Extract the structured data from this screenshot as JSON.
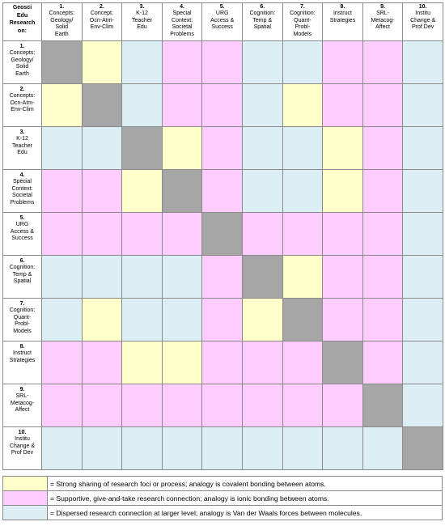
{
  "corner": [
    "Geosci",
    "Edu",
    "Research",
    "on:"
  ],
  "topics": [
    {
      "num": "1.",
      "label": [
        "Concepts:",
        "Geology/",
        "Solid",
        "Earth"
      ]
    },
    {
      "num": "2.",
      "label": [
        "Concept:",
        "Ocn-Atm-",
        "Env-Clim"
      ]
    },
    {
      "num": "3.",
      "label": [
        "K-12",
        "Teacher",
        "Edu"
      ]
    },
    {
      "num": "4.",
      "label": [
        "Special",
        "Context:",
        "Societal",
        "Problems"
      ]
    },
    {
      "num": "5.",
      "label": [
        "URG",
        "Access &",
        "Success"
      ]
    },
    {
      "num": "6.",
      "label": [
        "Cognition:",
        "Temp &",
        "Spatial"
      ]
    },
    {
      "num": "7.",
      "label": [
        "Cognition:",
        "Quant-",
        "Probl-",
        "Models"
      ]
    },
    {
      "num": "8.",
      "label": [
        "Instruct",
        "Strategies"
      ]
    },
    {
      "num": "9.",
      "label": [
        "SRL-",
        "Metacog-",
        "Affect"
      ]
    },
    {
      "num": "10.",
      "label": [
        "Institu",
        "Change &",
        "Prof Dev"
      ]
    }
  ],
  "row_headers": [
    {
      "num": "1.",
      "label": [
        "Concepts:",
        "Geology/",
        "Solid",
        "Earth"
      ]
    },
    {
      "num": "2.",
      "label": [
        "Concepts:",
        "Ocn-Atm-",
        "Env-Clim"
      ]
    },
    {
      "num": "3.",
      "label": [
        "K-12",
        "Teacher",
        "Edu"
      ]
    },
    {
      "num": "4.",
      "label": [
        "Special",
        "Context:",
        "Societal",
        "Problems"
      ]
    },
    {
      "num": "5.",
      "label": [
        "URG",
        "Access &",
        "Success"
      ]
    },
    {
      "num": "6.",
      "label": [
        "Cognition:",
        "Temp &",
        "Spatial"
      ]
    },
    {
      "num": "7.",
      "label": [
        "Cognition:",
        "Quant-",
        "Probl-",
        "Models"
      ]
    },
    {
      "num": "8.",
      "label": [
        "Instruct",
        "Strategies"
      ]
    },
    {
      "num": "9.",
      "label": [
        "SRL-",
        "Metacog-",
        "Affect"
      ]
    },
    {
      "num": "10.",
      "label": [
        "Institu",
        "Change &",
        "Prof Dev"
      ]
    }
  ],
  "matrix": [
    [
      "self",
      "strong",
      "dispersed",
      "support",
      "support",
      "dispersed",
      "dispersed",
      "support",
      "support",
      "dispersed"
    ],
    [
      "strong",
      "self",
      "dispersed",
      "support",
      "support",
      "dispersed",
      "strong",
      "support",
      "support",
      "dispersed"
    ],
    [
      "dispersed",
      "dispersed",
      "self",
      "strong",
      "support",
      "dispersed",
      "dispersed",
      "strong",
      "support",
      "dispersed"
    ],
    [
      "support",
      "support",
      "strong",
      "self",
      "support",
      "dispersed",
      "dispersed",
      "strong",
      "support",
      "dispersed"
    ],
    [
      "support",
      "support",
      "support",
      "support",
      "self",
      "support",
      "support",
      "support",
      "support",
      "dispersed"
    ],
    [
      "dispersed",
      "dispersed",
      "dispersed",
      "dispersed",
      "support",
      "self",
      "strong",
      "support",
      "support",
      "dispersed"
    ],
    [
      "dispersed",
      "strong",
      "dispersed",
      "dispersed",
      "support",
      "strong",
      "self",
      "support",
      "support",
      "dispersed"
    ],
    [
      "support",
      "support",
      "strong",
      "strong",
      "support",
      "support",
      "support",
      "self",
      "support",
      "dispersed"
    ],
    [
      "support",
      "support",
      "support",
      "support",
      "support",
      "support",
      "support",
      "support",
      "self",
      "dispersed"
    ],
    [
      "dispersed",
      "dispersed",
      "dispersed",
      "dispersed",
      "dispersed",
      "dispersed",
      "dispersed",
      "dispersed",
      "dispersed",
      "self"
    ]
  ],
  "colors": {
    "self": "#a6a6a6",
    "strong": "#ffffcc",
    "support": "#ffccff",
    "dispersed": "#daeef3"
  },
  "legend": [
    {
      "category": "strong",
      "text": "= Strong sharing of research foci or process; analogy is covalent bonding between atoms."
    },
    {
      "category": "support",
      "text": "= Supportive, give-and-take research connection; analogy is ionic bonding between atoms."
    },
    {
      "category": "dispersed",
      "text": "= Dispersed research connection at larger level; analogy is Van der Waals forces between molecules."
    }
  ]
}
